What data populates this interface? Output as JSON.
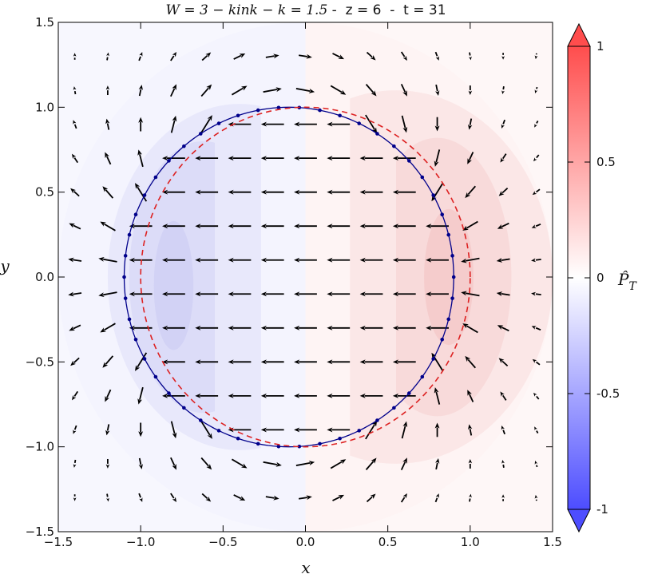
{
  "chart_data": {
    "type": "quiver",
    "title_math": "W = 3 − kink − k = 1.5",
    "title_rest": " -  z = 6  -  t = 31",
    "xlabel": "x",
    "ylabel": "y",
    "xlim": [
      -1.5,
      1.5
    ],
    "ylim": [
      -1.5,
      1.5
    ],
    "x_ticks": [
      -1.5,
      -1.0,
      -0.5,
      0.0,
      0.5,
      1.0,
      1.5
    ],
    "y_ticks": [
      -1.5,
      -1.0,
      -0.5,
      0.0,
      0.5,
      1.0,
      1.5
    ],
    "x_tick_labels": [
      "−1.5",
      "−1.0",
      "−0.5",
      "0.0",
      "0.5",
      "1.0",
      "1.5"
    ],
    "y_tick_labels": [
      "−1.5",
      "−1.0",
      "−0.5",
      "0.0",
      "0.5",
      "1.0",
      "1.5"
    ],
    "colorbar": {
      "label": "P̂_T",
      "range": [
        -1,
        1
      ],
      "ticks": [
        1,
        0.5,
        0,
        -0.5,
        -1
      ],
      "tick_labels": [
        "1",
        "0.5",
        "0",
        "-0.5",
        "-1"
      ],
      "color_low": "#4d4dff",
      "color_mid": "#ffffff",
      "color_high": "#ff4d4d"
    },
    "contour_levels": [
      {
        "side": "left",
        "value": -0.05,
        "color": "#f4f4fe",
        "cx": 0,
        "cy": 0,
        "rx": 1.5,
        "ry": 1.5,
        "clip": "x<0"
      },
      {
        "side": "left",
        "value": -0.1,
        "color": "#e8e8fb",
        "cx": -0.4,
        "cy": 0,
        "rx": 0.8,
        "ry": 1.02,
        "clip": "x<-0.27"
      },
      {
        "side": "left",
        "value": -0.15,
        "color": "#dcdcf8",
        "cx": -0.62,
        "cy": 0,
        "rx": 0.45,
        "ry": 0.8,
        "clip": "x<-0.55"
      },
      {
        "side": "left",
        "value": -0.2,
        "color": "#d2d2f5",
        "cx": -0.8,
        "cy": -0.05,
        "rx": 0.12,
        "ry": 0.38,
        "clip": "none"
      },
      {
        "side": "right",
        "value": 0.05,
        "color": "#fef4f4",
        "cx": 0,
        "cy": 0,
        "rx": 1.5,
        "ry": 1.5,
        "clip": "x>0"
      },
      {
        "side": "right",
        "value": 0.1,
        "color": "#fbe7e7",
        "cx": 0.55,
        "cy": 0,
        "rx": 0.95,
        "ry": 1.1,
        "clip": "x>0.27"
      },
      {
        "side": "right",
        "value": 0.15,
        "color": "#f8dada",
        "cx": 0.8,
        "cy": 0,
        "rx": 0.45,
        "ry": 0.82,
        "clip": "x>0.55"
      },
      {
        "side": "right",
        "value": 0.2,
        "color": "#f5cccc",
        "cx": 0.87,
        "cy": 0,
        "rx": 0.15,
        "ry": 0.4,
        "clip": "none"
      }
    ],
    "series": [
      {
        "name": "",
        "style": "solid-markers",
        "color": "#00008b",
        "center": [
          -0.1,
          0.0
        ],
        "radius": 1.0,
        "n_points": 50
      },
      {
        "name": "",
        "style": "dashed",
        "color": "#dd2222",
        "center": [
          0.0,
          0.0
        ],
        "radius": 1.0
      }
    ],
    "vector_field": {
      "grid_x": [
        -1.4,
        -1.2,
        -1.0,
        -0.8,
        -0.6,
        -0.4,
        -0.2,
        0.0,
        0.2,
        0.4,
        0.6,
        0.8,
        1.0,
        1.2,
        1.4
      ],
      "grid_y": [
        1.3,
        1.1,
        0.9,
        0.7,
        0.5,
        0.3,
        0.1,
        -0.1,
        -0.3,
        -0.5,
        -0.7,
        -0.9,
        -1.1,
        -1.3
      ],
      "inside_u": -0.12,
      "inside_v": 0.0,
      "outside_model": "dipole",
      "circle_center": [
        -0.1,
        0.0
      ],
      "circle_radius": 1.0,
      "arrow_color": "#000000"
    }
  }
}
